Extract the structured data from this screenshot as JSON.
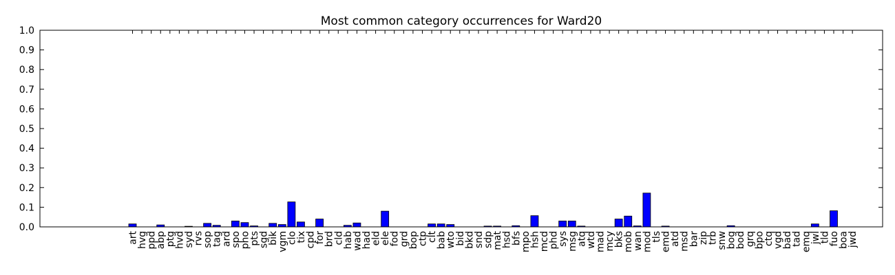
{
  "chart_data": {
    "type": "bar",
    "title": "Most common category occurrences for Ward20",
    "xlabel": "",
    "ylabel": "",
    "ylim": [
      0,
      1.0
    ],
    "yticks": [
      "0.0",
      "0.1",
      "0.2",
      "0.3",
      "0.4",
      "0.5",
      "0.6",
      "0.7",
      "0.8",
      "0.9",
      "1.0"
    ],
    "grid": false,
    "legend": "none",
    "bar_color": "#0000ff",
    "categories": [
      "art",
      "hvg",
      "ppd",
      "abp",
      "ptg",
      "hvd",
      "syd",
      "rvs",
      "sop",
      "tag",
      "ard",
      "spo",
      "pho",
      "pts",
      "sgd",
      "bik",
      "vgm",
      "clo",
      "tix",
      "cpd",
      "for",
      "brd",
      "cld",
      "hab",
      "wad",
      "had",
      "eld",
      "ele",
      "fod",
      "grd",
      "bop",
      "ctp",
      "clt",
      "bab",
      "wto",
      "bid",
      "bkd",
      "snd",
      "sdp",
      "mat",
      "hsd",
      "bfs",
      "mpo",
      "hsh",
      "mcd",
      "phd",
      "sys",
      "msg",
      "atq",
      "wtd",
      "mad",
      "mcy",
      "bks",
      "mob",
      "wan",
      "mod",
      "tls",
      "emd",
      "atd",
      "msd",
      "bar",
      "zip",
      "trb",
      "snw",
      "bog",
      "bod",
      "grq",
      "bpo",
      "ctq",
      "vgd",
      "bad",
      "tad",
      "emq",
      "jwl",
      "tld",
      "fuo",
      "boa",
      "jwd"
    ],
    "values": [
      0.015,
      0.0,
      0.0,
      0.01,
      0.0,
      0.0,
      0.003,
      0.0,
      0.018,
      0.008,
      0.0,
      0.03,
      0.022,
      0.005,
      0.0,
      0.018,
      0.012,
      0.127,
      0.025,
      0.0,
      0.04,
      0.0,
      0.0,
      0.008,
      0.02,
      0.0,
      0.0,
      0.08,
      0.0,
      0.0,
      0.0,
      0.0,
      0.015,
      0.015,
      0.012,
      0.0,
      0.0,
      0.0,
      0.004,
      0.004,
      0.0,
      0.006,
      0.0,
      0.057,
      0.0,
      0.0,
      0.03,
      0.03,
      0.004,
      0.0,
      0.0,
      0.0,
      0.04,
      0.055,
      0.005,
      0.172,
      0.0,
      0.004,
      0.0,
      0.0,
      0.0,
      0.0,
      0.0,
      0.0,
      0.006,
      0.0,
      0.0,
      0.0,
      0.0,
      0.0,
      0.0,
      0.0,
      0.0,
      0.015,
      0.0,
      0.082,
      0.0,
      0.0
    ]
  }
}
